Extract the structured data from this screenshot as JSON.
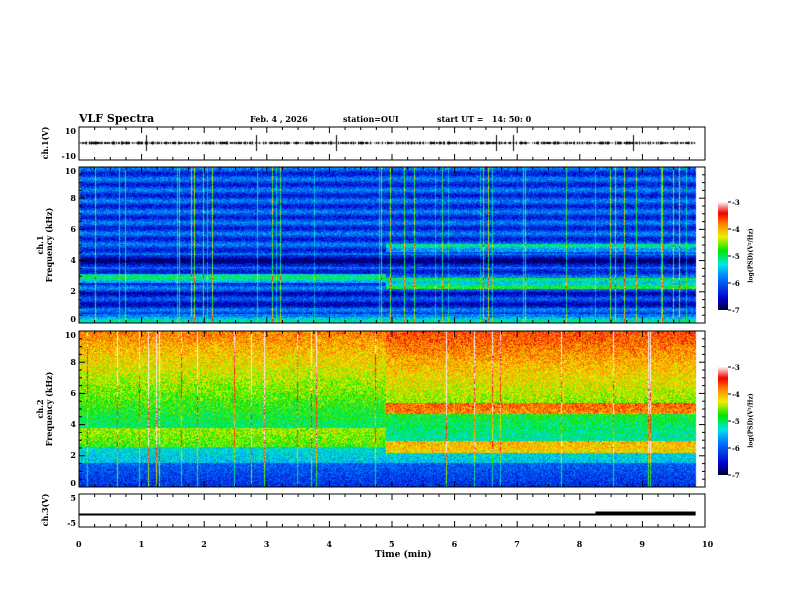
{
  "header": {
    "title": "VLF Spectra",
    "date": "Feb. 4 , 2026",
    "station": "station=OUI",
    "start": "start UT =   14: 50: 0"
  },
  "chart_data": [
    {
      "type": "line",
      "name": "ch1-waveform",
      "ylabel": "ch.1(V)",
      "ylim": [
        -10,
        10
      ],
      "yticks": [
        "10",
        "-10"
      ],
      "xlim": [
        0,
        10
      ]
    },
    {
      "type": "heatmap",
      "name": "ch1-spectrogram",
      "ylabel": "ch.1\nFrequency (kHz)",
      "ylabel_lines": [
        "ch.1",
        "Frequency (kHz)"
      ],
      "ylim": [
        0,
        10
      ],
      "yticks": [
        "0",
        "2",
        "4",
        "6",
        "8",
        "10"
      ],
      "xlim": [
        0,
        10
      ],
      "data_end_min": 9.85,
      "change_min": 4.9,
      "colorbar": {
        "label": "log(PSD)(V²/Hz)",
        "range": [
          -7,
          -3
        ],
        "ticks": [
          "-3",
          "-4",
          "-5",
          "-6",
          "-7"
        ]
      }
    },
    {
      "type": "heatmap",
      "name": "ch2-spectrogram",
      "ylabel_lines": [
        "ch.2",
        "Frequency (kHz)"
      ],
      "ylim": [
        0,
        10
      ],
      "yticks": [
        "0",
        "2",
        "4",
        "6",
        "8",
        "10"
      ],
      "xlim": [
        0,
        10
      ],
      "data_end_min": 9.85,
      "change_min": 4.9,
      "colorbar": {
        "label": "log(PSD)(V²/Hz)",
        "range": [
          -7,
          -3
        ],
        "ticks": [
          "-3",
          "-4",
          "-5",
          "-6",
          "-7"
        ]
      }
    },
    {
      "type": "line",
      "name": "ch3-waveform",
      "ylabel": "ch.3(V)",
      "ylim": [
        -5,
        5
      ],
      "yticks": [
        "5",
        "-5"
      ],
      "xlim": [
        0,
        10
      ],
      "segments": [
        {
          "x": [
            0,
            8.25
          ],
          "y": -1.2
        },
        {
          "x": [
            8.25,
            9.85
          ],
          "y": -0.9
        }
      ]
    }
  ],
  "xaxis": {
    "label": "Time  (min)",
    "ticks": [
      "0",
      "1",
      "2",
      "3",
      "4",
      "5",
      "6",
      "7",
      "8",
      "9",
      "10"
    ]
  }
}
